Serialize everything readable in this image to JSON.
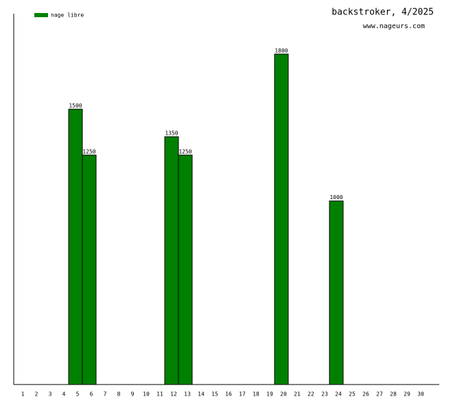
{
  "chart_data": {
    "type": "bar",
    "title": "backstroker, 4/2025",
    "subtitle": "www.nageurs.com",
    "categories": [
      "1",
      "2",
      "3",
      "4",
      "5",
      "6",
      "7",
      "8",
      "9",
      "10",
      "11",
      "12",
      "13",
      "14",
      "15",
      "16",
      "17",
      "18",
      "19",
      "20",
      "21",
      "22",
      "23",
      "24",
      "25",
      "26",
      "27",
      "28",
      "29",
      "30"
    ],
    "series": [
      {
        "name": "nage libre",
        "color": "#008000",
        "values": [
          null,
          null,
          null,
          null,
          1500,
          1250,
          null,
          null,
          null,
          null,
          null,
          1350,
          1250,
          null,
          null,
          null,
          null,
          null,
          null,
          1800,
          null,
          null,
          null,
          1000,
          null,
          null,
          null,
          null,
          null,
          null
        ]
      }
    ],
    "ylim": [
      0,
      2020
    ],
    "legend": "top-left"
  }
}
